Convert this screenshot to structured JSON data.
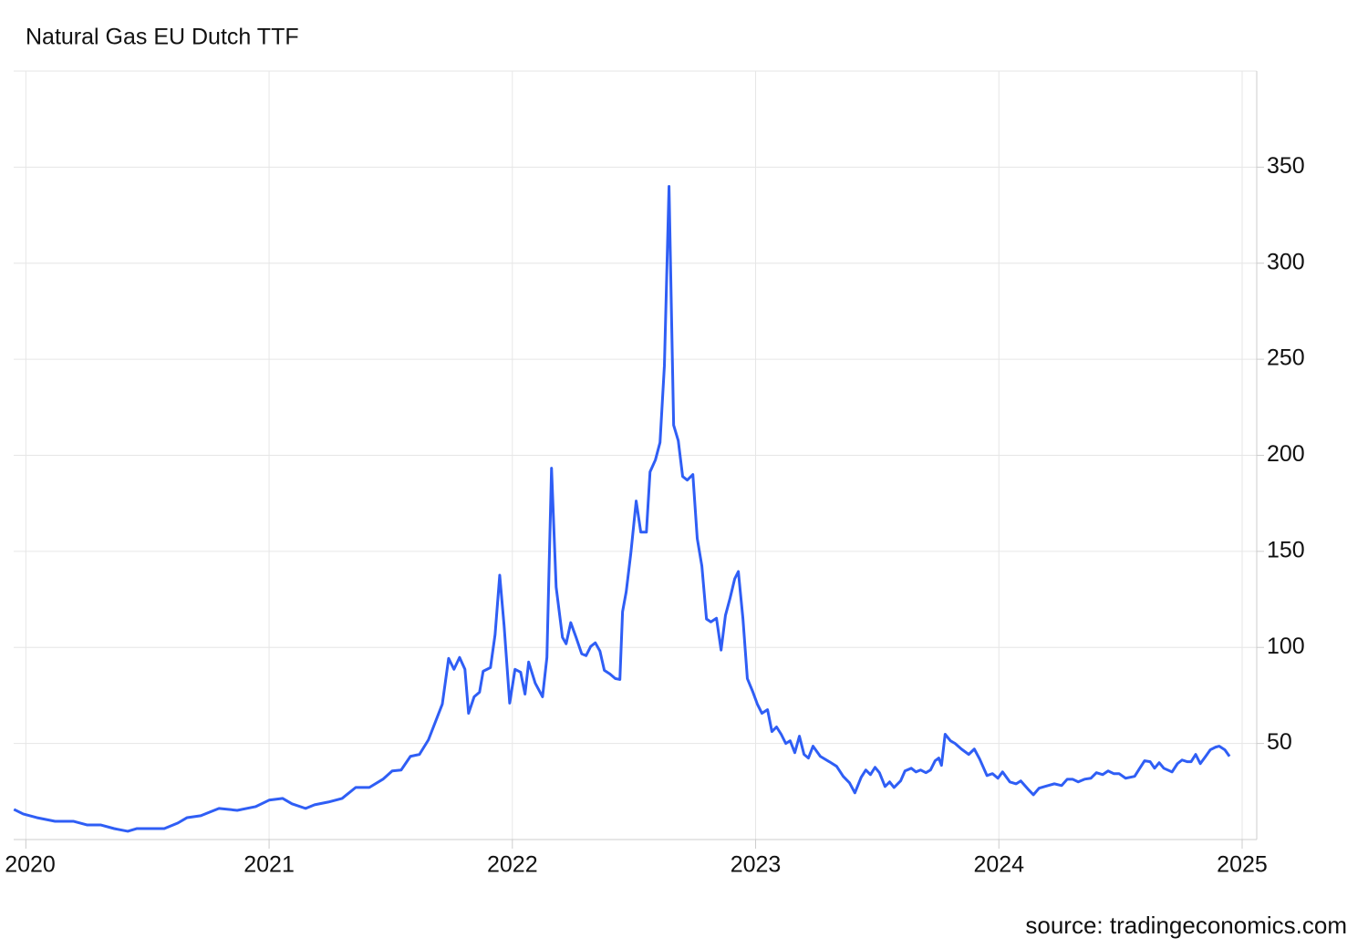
{
  "chart_data": {
    "type": "line",
    "title": "Natural Gas EU Dutch TTF",
    "source": "source: tradingeconomics.com",
    "xlim": [
      2019.95,
      2025.06
    ],
    "xticks": [
      2020,
      2021,
      2022,
      2023,
      2024,
      2025
    ],
    "ylim": [
      0,
      400
    ],
    "yticks": [
      50,
      100,
      150,
      200,
      250,
      300,
      350
    ],
    "grid": true,
    "y_axis_side": "right",
    "series": [
      {
        "name": "Natural Gas EU Dutch TTF",
        "color": "#2f5ef5",
        "x": [
          2019.951,
          2019.989,
          2020.045,
          2020.12,
          2020.195,
          2020.251,
          2020.307,
          2020.363,
          2020.419,
          2020.457,
          2020.513,
          2020.569,
          2020.625,
          2020.663,
          2020.719,
          2020.794,
          2020.869,
          2020.944,
          2021.0,
          2021.056,
          2021.094,
          2021.15,
          2021.187,
          2021.243,
          2021.3,
          2021.356,
          2021.412,
          2021.468,
          2021.506,
          2021.543,
          2021.581,
          2021.618,
          2021.655,
          2021.712,
          2021.738,
          2021.76,
          2021.783,
          2021.805,
          2021.82,
          2021.843,
          2021.865,
          2021.88,
          2021.91,
          2021.929,
          2021.948,
          2021.966,
          2021.989,
          2022.011,
          2022.034,
          2022.052,
          2022.067,
          2022.094,
          2022.124,
          2022.142,
          2022.161,
          2022.18,
          2022.206,
          2022.221,
          2022.24,
          2022.262,
          2022.285,
          2022.303,
          2022.322,
          2022.341,
          2022.36,
          2022.378,
          2022.401,
          2022.423,
          2022.442,
          2022.453,
          2022.468,
          2022.487,
          2022.509,
          2022.528,
          2022.551,
          2022.566,
          2022.588,
          2022.607,
          2022.625,
          2022.644,
          2022.663,
          2022.682,
          2022.7,
          2022.719,
          2022.742,
          2022.76,
          2022.779,
          2022.798,
          2022.816,
          2022.839,
          2022.858,
          2022.876,
          2022.895,
          2022.914,
          2022.929,
          2022.948,
          2022.966,
          2022.989,
          2023.007,
          2023.026,
          2023.049,
          2023.067,
          2023.086,
          2023.105,
          2023.124,
          2023.142,
          2023.161,
          2023.18,
          2023.199,
          2023.217,
          2023.236,
          2023.266,
          2023.303,
          2023.333,
          2023.36,
          2023.386,
          2023.408,
          2023.434,
          2023.453,
          2023.472,
          2023.491,
          2023.509,
          2023.532,
          2023.551,
          2023.569,
          2023.596,
          2023.614,
          2023.64,
          2023.659,
          2023.678,
          2023.7,
          2023.719,
          2023.738,
          2023.753,
          2023.764,
          2023.779,
          2023.801,
          2023.82,
          2023.846,
          2023.876,
          2023.899,
          2023.921,
          2023.951,
          2023.974,
          2023.996,
          2024.015,
          2024.045,
          2024.071,
          2024.09,
          2024.12,
          2024.142,
          2024.165,
          2024.202,
          2024.228,
          2024.258,
          2024.281,
          2024.303,
          2024.326,
          2024.352,
          2024.378,
          2024.401,
          2024.427,
          2024.449,
          2024.472,
          2024.494,
          2024.521,
          2024.558,
          2024.577,
          2024.599,
          2024.622,
          2024.64,
          2024.659,
          2024.678,
          2024.712,
          2024.734,
          2024.753,
          2024.775,
          2024.79,
          2024.809,
          2024.828,
          2024.85,
          2024.869,
          2024.891,
          2024.906,
          2024.929,
          2024.948
        ],
        "values": [
          15.7,
          13.3,
          11.4,
          9.5,
          9.5,
          7.6,
          7.6,
          5.7,
          4.3,
          5.7,
          5.7,
          5.7,
          8.6,
          11.4,
          12.4,
          16.2,
          15.2,
          17.1,
          20.5,
          21.4,
          18.6,
          16.2,
          18.1,
          19.5,
          21.4,
          27.1,
          27.1,
          31.4,
          35.7,
          36.2,
          43.3,
          44.3,
          51.9,
          70.5,
          94.3,
          88.6,
          94.8,
          88.6,
          65.7,
          74.3,
          76.7,
          87.6,
          89.5,
          106.7,
          137.6,
          111.4,
          71.0,
          88.6,
          87.1,
          75.7,
          92.4,
          81.4,
          74.3,
          94.8,
          193.3,
          131.4,
          105.2,
          101.9,
          112.9,
          105.2,
          96.7,
          95.7,
          100.5,
          102.4,
          98.1,
          88.1,
          86.2,
          83.8,
          83.3,
          118.6,
          129.0,
          149.0,
          176.2,
          160.0,
          160.0,
          191.4,
          197.6,
          206.7,
          246.7,
          340.0,
          215.7,
          207.6,
          189.0,
          187.1,
          190.0,
          156.7,
          142.4,
          114.8,
          113.3,
          115.2,
          98.6,
          116.7,
          125.7,
          135.7,
          139.5,
          114.8,
          83.8,
          76.7,
          70.5,
          65.7,
          67.6,
          56.2,
          58.6,
          54.8,
          50.0,
          51.4,
          45.2,
          53.8,
          44.3,
          42.4,
          48.6,
          43.3,
          40.5,
          38.1,
          32.9,
          29.5,
          24.3,
          32.4,
          36.2,
          33.8,
          37.6,
          34.8,
          27.6,
          30.0,
          27.1,
          30.5,
          35.7,
          37.1,
          35.2,
          36.2,
          34.8,
          36.2,
          41.0,
          42.4,
          38.6,
          54.8,
          51.4,
          50.0,
          47.1,
          44.3,
          47.1,
          41.9,
          33.3,
          34.3,
          31.9,
          35.2,
          30.0,
          29.0,
          30.5,
          26.2,
          23.3,
          26.7,
          28.1,
          29.0,
          28.1,
          31.4,
          31.4,
          30.0,
          31.4,
          31.9,
          34.8,
          33.8,
          35.7,
          34.3,
          34.3,
          31.9,
          32.9,
          36.7,
          41.0,
          40.5,
          37.1,
          40.0,
          37.1,
          35.2,
          39.5,
          41.4,
          40.5,
          40.5,
          44.3,
          39.5,
          43.3,
          46.7,
          48.1,
          48.6,
          46.7,
          43.3
        ]
      }
    ]
  }
}
